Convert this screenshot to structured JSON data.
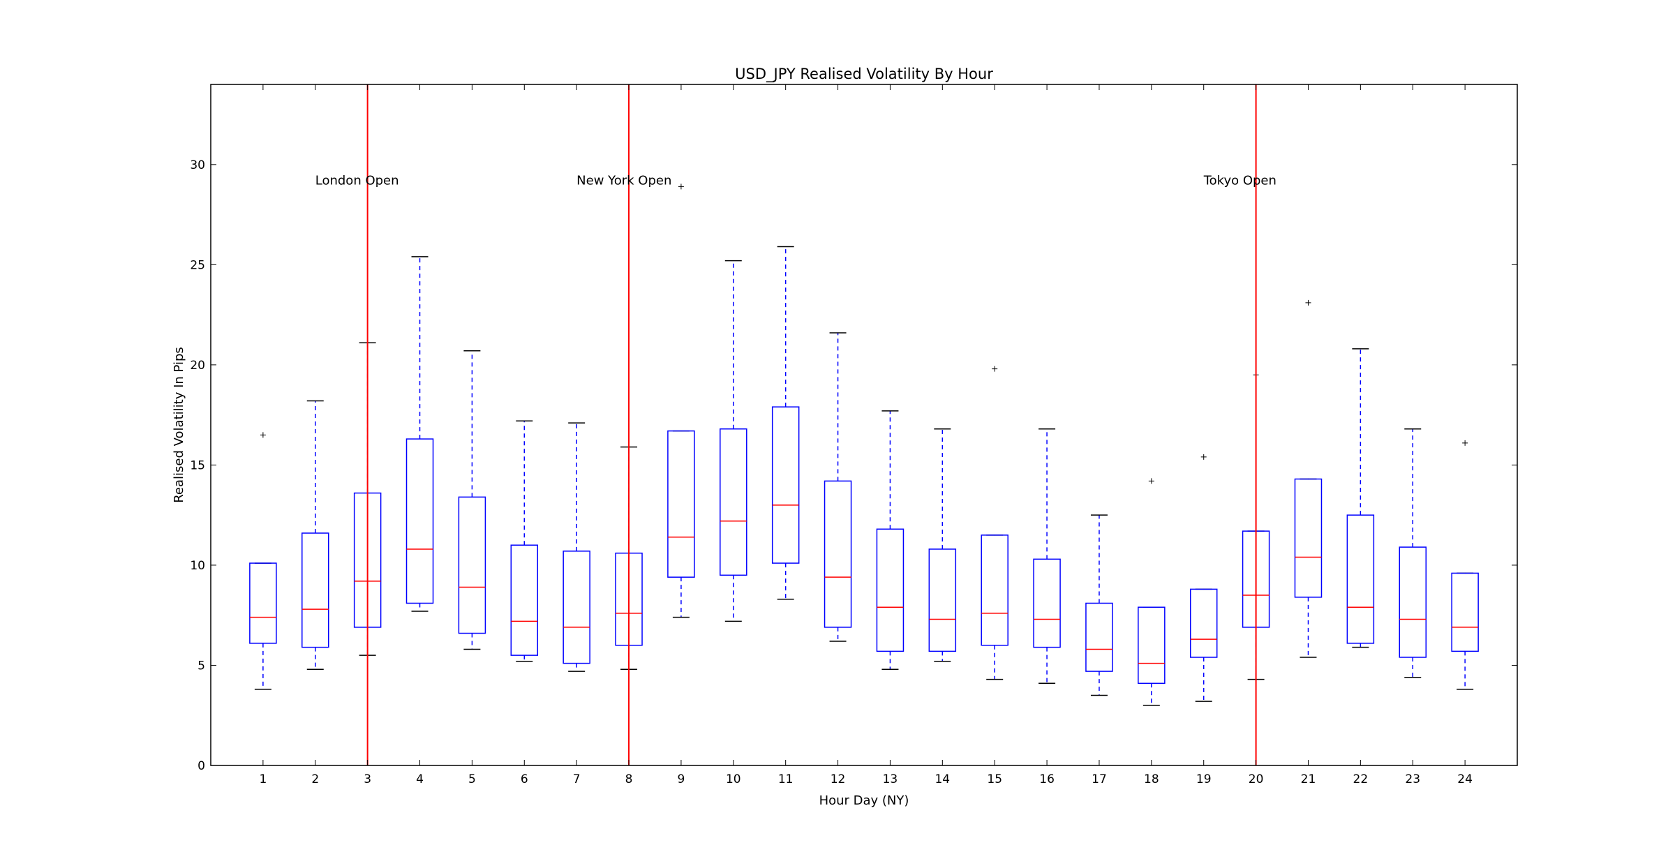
{
  "chart_data": {
    "type": "box",
    "title": "USD_JPY Realised Volatility By Hour",
    "xlabel": "Hour Day (NY)",
    "ylabel": "Realised Volatility In Pips",
    "ylim": [
      0,
      34
    ],
    "xlim": [
      0,
      25
    ],
    "yticks": [
      0,
      5,
      10,
      15,
      20,
      25,
      30
    ],
    "grid": false,
    "colors": {
      "box": "#0000ff",
      "median": "#ff0000",
      "vline": "#ff0000",
      "cap": "#000000",
      "flier": "#000000"
    },
    "boxes": [
      {
        "x": 1,
        "whisker_low": 3.8,
        "q1": 6.1,
        "median": 7.4,
        "q3": 10.1,
        "whisker_high": 10.1,
        "fliers": [
          16.5
        ]
      },
      {
        "x": 2,
        "whisker_low": 4.8,
        "q1": 5.9,
        "median": 7.8,
        "q3": 11.6,
        "whisker_high": 18.2,
        "fliers": []
      },
      {
        "x": 3,
        "whisker_low": 5.5,
        "q1": 6.9,
        "median": 9.2,
        "q3": 13.6,
        "whisker_high": 21.1,
        "fliers": []
      },
      {
        "x": 4,
        "whisker_low": 7.7,
        "q1": 8.1,
        "median": 10.8,
        "q3": 16.3,
        "whisker_high": 25.4,
        "fliers": []
      },
      {
        "x": 5,
        "whisker_low": 5.8,
        "q1": 6.6,
        "median": 8.9,
        "q3": 13.4,
        "whisker_high": 20.7,
        "fliers": []
      },
      {
        "x": 6,
        "whisker_low": 5.2,
        "q1": 5.5,
        "median": 7.2,
        "q3": 11.0,
        "whisker_high": 17.2,
        "fliers": []
      },
      {
        "x": 7,
        "whisker_low": 4.7,
        "q1": 5.1,
        "median": 6.9,
        "q3": 10.7,
        "whisker_high": 17.1,
        "fliers": []
      },
      {
        "x": 8,
        "whisker_low": 4.8,
        "q1": 6.0,
        "median": 7.6,
        "q3": 10.6,
        "whisker_high": 15.9,
        "fliers": []
      },
      {
        "x": 9,
        "whisker_low": 7.4,
        "q1": 9.4,
        "median": 11.4,
        "q3": 16.7,
        "whisker_high": 16.7,
        "fliers": [
          28.9
        ]
      },
      {
        "x": 10,
        "whisker_low": 7.2,
        "q1": 9.5,
        "median": 12.2,
        "q3": 16.8,
        "whisker_high": 25.2,
        "fliers": []
      },
      {
        "x": 11,
        "whisker_low": 8.3,
        "q1": 10.1,
        "median": 13.0,
        "q3": 17.9,
        "whisker_high": 25.9,
        "fliers": []
      },
      {
        "x": 12,
        "whisker_low": 6.2,
        "q1": 6.9,
        "median": 9.4,
        "q3": 14.2,
        "whisker_high": 21.6,
        "fliers": []
      },
      {
        "x": 13,
        "whisker_low": 4.8,
        "q1": 5.7,
        "median": 7.9,
        "q3": 11.8,
        "whisker_high": 17.7,
        "fliers": []
      },
      {
        "x": 14,
        "whisker_low": 5.2,
        "q1": 5.7,
        "median": 7.3,
        "q3": 10.8,
        "whisker_high": 16.8,
        "fliers": []
      },
      {
        "x": 15,
        "whisker_low": 4.3,
        "q1": 6.0,
        "median": 7.6,
        "q3": 11.5,
        "whisker_high": 11.5,
        "fliers": [
          19.8
        ]
      },
      {
        "x": 16,
        "whisker_low": 4.1,
        "q1": 5.9,
        "median": 7.3,
        "q3": 10.3,
        "whisker_high": 16.8,
        "fliers": []
      },
      {
        "x": 17,
        "whisker_low": 3.5,
        "q1": 4.7,
        "median": 5.8,
        "q3": 8.1,
        "whisker_high": 12.5,
        "fliers": []
      },
      {
        "x": 18,
        "whisker_low": 3.0,
        "q1": 4.1,
        "median": 5.1,
        "q3": 7.9,
        "whisker_high": 7.9,
        "fliers": [
          14.2
        ]
      },
      {
        "x": 19,
        "whisker_low": 3.2,
        "q1": 5.4,
        "median": 6.3,
        "q3": 8.8,
        "whisker_high": 8.8,
        "fliers": [
          15.4
        ]
      },
      {
        "x": 20,
        "whisker_low": 4.3,
        "q1": 6.9,
        "median": 8.5,
        "q3": 11.7,
        "whisker_high": 11.7,
        "fliers": [
          19.5
        ]
      },
      {
        "x": 21,
        "whisker_low": 5.4,
        "q1": 8.4,
        "median": 10.4,
        "q3": 14.3,
        "whisker_high": 14.3,
        "fliers": [
          23.1
        ]
      },
      {
        "x": 22,
        "whisker_low": 5.9,
        "q1": 6.1,
        "median": 7.9,
        "q3": 12.5,
        "whisker_high": 20.8,
        "fliers": []
      },
      {
        "x": 23,
        "whisker_low": 4.4,
        "q1": 5.4,
        "median": 7.3,
        "q3": 10.9,
        "whisker_high": 16.8,
        "fliers": []
      },
      {
        "x": 24,
        "whisker_low": 3.8,
        "q1": 5.7,
        "median": 6.9,
        "q3": 9.6,
        "whisker_high": 9.6,
        "fliers": [
          16.1
        ]
      }
    ],
    "vlines": [
      {
        "x": 3,
        "label": "London Open",
        "label_x": 2.0,
        "label_y": 29.0
      },
      {
        "x": 8,
        "label": "New York Open",
        "label_x": 7.0,
        "label_y": 29.0
      },
      {
        "x": 20,
        "label": "Tokyo Open",
        "label_x": 19.0,
        "label_y": 29.0
      }
    ]
  }
}
